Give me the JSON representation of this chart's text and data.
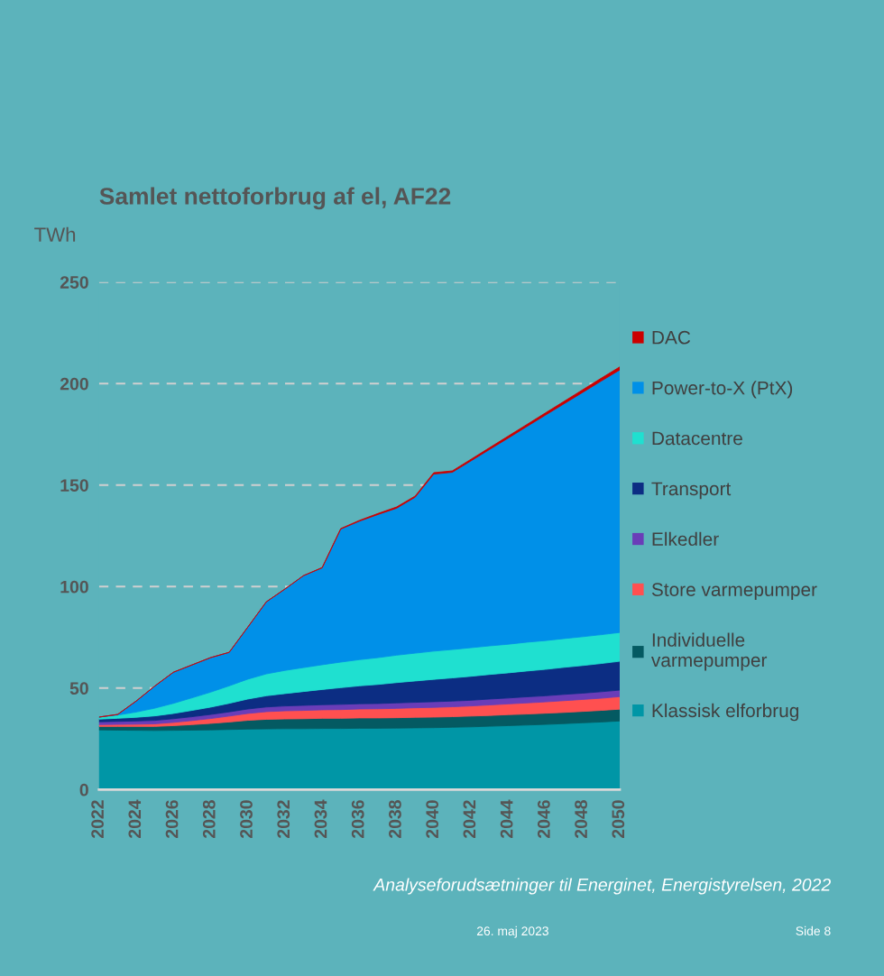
{
  "chart_data": {
    "type": "area",
    "stacked": true,
    "title": "Samlet nettoforbrug af el, AF22",
    "ylabel": "TWh",
    "x": [
      2022,
      2023,
      2024,
      2025,
      2026,
      2027,
      2028,
      2029,
      2030,
      2031,
      2032,
      2033,
      2034,
      2035,
      2036,
      2037,
      2038,
      2039,
      2040,
      2041,
      2042,
      2043,
      2044,
      2045,
      2046,
      2047,
      2048,
      2049,
      2050
    ],
    "xlim": [
      2022,
      2050
    ],
    "xticks": [
      2022,
      2024,
      2026,
      2028,
      2030,
      2032,
      2034,
      2036,
      2038,
      2040,
      2042,
      2044,
      2046,
      2048,
      2050
    ],
    "ylim": [
      0,
      250
    ],
    "yticks": [
      0,
      50,
      100,
      150,
      200,
      250
    ],
    "grid": "y",
    "legend": "right",
    "series": [
      {
        "name": "Klassisk elforbrug",
        "color": "#0096a6",
        "values": [
          29.4,
          29.3,
          29.2,
          29.1,
          29.2,
          29.3,
          29.4,
          29.6,
          29.8,
          29.9,
          30.0,
          30.0,
          30.1,
          30.1,
          30.2,
          30.2,
          30.3,
          30.4,
          30.5,
          30.7,
          30.9,
          31.2,
          31.5,
          31.8,
          32.1,
          32.5,
          32.9,
          33.3,
          33.8
        ]
      },
      {
        "name": "Individuelle\nvarmepumper",
        "color": "#045a62",
        "values": [
          1.7,
          1.8,
          1.9,
          2.0,
          2.3,
          2.7,
          3.2,
          3.7,
          4.3,
          4.7,
          4.8,
          4.9,
          5.0,
          5.0,
          5.1,
          5.1,
          5.1,
          5.2,
          5.2,
          5.2,
          5.3,
          5.3,
          5.4,
          5.4,
          5.5,
          5.5,
          5.6,
          5.7,
          5.8
        ]
      },
      {
        "name": "Store varmepumper",
        "color": "#ff5050",
        "values": [
          0.9,
          1.0,
          1.1,
          1.3,
          1.6,
          2.0,
          2.4,
          2.9,
          3.4,
          3.8,
          4.0,
          4.1,
          4.2,
          4.3,
          4.4,
          4.5,
          4.6,
          4.7,
          4.8,
          4.9,
          5.0,
          5.2,
          5.3,
          5.5,
          5.6,
          5.8,
          5.9,
          6.0,
          6.2
        ]
      },
      {
        "name": "Elkedler",
        "color": "#6a3db8",
        "values": [
          1.4,
          1.5,
          1.6,
          1.7,
          1.8,
          1.9,
          2.0,
          2.1,
          2.2,
          2.3,
          2.4,
          2.5,
          2.5,
          2.6,
          2.6,
          2.6,
          2.7,
          2.7,
          2.8,
          2.8,
          2.8,
          2.9,
          2.9,
          3.0,
          3.0,
          3.1,
          3.1,
          3.2,
          3.2
        ]
      },
      {
        "name": "Transport",
        "color": "#0c2d83",
        "values": [
          1.3,
          1.5,
          1.8,
          2.2,
          2.6,
          3.1,
          3.6,
          4.2,
          4.9,
          5.5,
          6.1,
          6.8,
          7.5,
          8.2,
          8.8,
          9.4,
          10.0,
          10.5,
          11.0,
          11.4,
          11.8,
          12.1,
          12.4,
          12.7,
          13.0,
          13.3,
          13.6,
          13.9,
          14.2
        ]
      },
      {
        "name": "Datacentre",
        "color": "#1fe0d0",
        "values": [
          1.0,
          1.6,
          2.6,
          3.8,
          5.0,
          6.2,
          7.4,
          8.6,
          9.8,
          10.8,
          11.4,
          11.8,
          12.2,
          12.6,
          12.9,
          13.2,
          13.5,
          13.7,
          13.9,
          14.0,
          14.1,
          14.1,
          14.1,
          14.2,
          14.2,
          14.2,
          14.2,
          14.2,
          14.2
        ]
      },
      {
        "name": "Power-to-X (PtX)",
        "color": "#0090e8",
        "values": [
          0,
          0.3,
          5.4,
          10.9,
          15.3,
          16.2,
          17.0,
          16.5,
          25.6,
          35.5,
          40.1,
          45.3,
          47.7,
          65.5,
          68.2,
          70.5,
          72.4,
          76.8,
          87.2,
          87.3,
          92.0,
          96.7,
          101.5,
          106.2,
          111.0,
          115.6,
          120.3,
          124.9,
          129.3
        ]
      },
      {
        "name": "DAC",
        "color": "#cc0000",
        "values": [
          0,
          0,
          0,
          0,
          0,
          0,
          0,
          0,
          0,
          0,
          0,
          0,
          0.2,
          0.3,
          0.4,
          0.5,
          0.6,
          0.6,
          0.7,
          0.7,
          0.8,
          0.9,
          1.0,
          1.0,
          1.1,
          1.2,
          1.3,
          1.4,
          1.5
        ]
      }
    ],
    "annotations": [
      "Analyseforudsætninger til Energinet, Energistyrelsen, 2022",
      "26. maj 2023",
      "Side 8"
    ]
  }
}
